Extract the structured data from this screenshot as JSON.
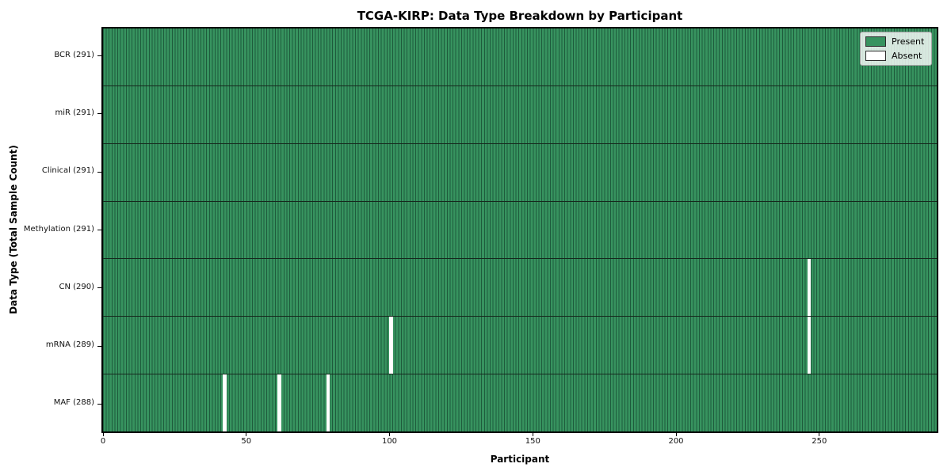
{
  "chart_data": {
    "type": "heatmap",
    "title": "TCGA-KIRP: Data Type Breakdown by Participant",
    "xlabel": "Participant",
    "ylabel": "Data Type (Total Sample Count)",
    "x_ticks": [
      0,
      50,
      100,
      150,
      200,
      250
    ],
    "xlim": [
      0,
      291
    ],
    "n_participants": 291,
    "grid": "row-dividers-and-cell-edges",
    "legend_position": "upper-right",
    "rows": [
      {
        "label": "BCR (291)",
        "data_type": "BCR",
        "present_count": 291,
        "absent_participants": []
      },
      {
        "label": "miR (291)",
        "data_type": "miR",
        "present_count": 291,
        "absent_participants": []
      },
      {
        "label": "Clinical (291)",
        "data_type": "Clinical",
        "present_count": 291,
        "absent_participants": []
      },
      {
        "label": "Methylation (291)",
        "data_type": "Methylation",
        "present_count": 291,
        "absent_participants": []
      },
      {
        "label": "CN (290)",
        "data_type": "CN",
        "present_count": 290,
        "absent_participants": [
          246
        ]
      },
      {
        "label": "mRNA (289)",
        "data_type": "mRNA",
        "present_count": 289,
        "absent_participants": [
          100,
          246
        ]
      },
      {
        "label": "MAF (288)",
        "data_type": "MAF",
        "present_count": 288,
        "absent_participants": [
          42,
          61,
          78
        ]
      }
    ],
    "legend": {
      "entries": [
        {
          "label": "Present",
          "color": "#37935F"
        },
        {
          "label": "Absent",
          "color": "#FFFFFF"
        }
      ]
    },
    "colors": {
      "present_fill": "#37935F",
      "absent_fill": "#FFFFFF",
      "cell_edge": "#1E5B3C",
      "row_divider": "#16281d",
      "spine": "#000000",
      "background": "#FFFFFF"
    }
  }
}
